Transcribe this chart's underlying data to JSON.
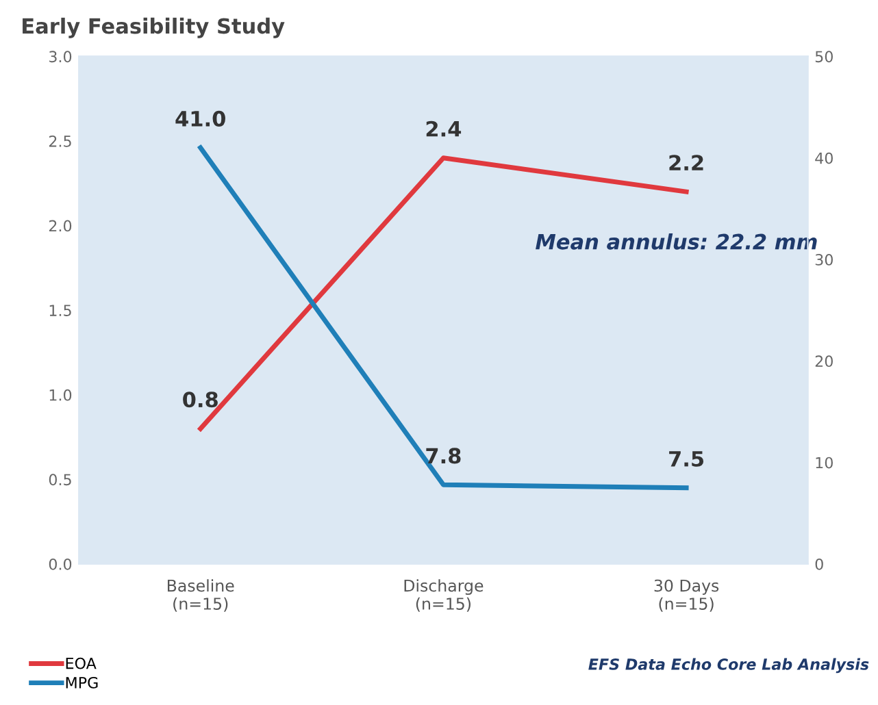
{
  "chart_data": {
    "type": "line",
    "title": "Early Feasibility Study",
    "categories": [
      "Baseline\n(n=15)",
      "Discharge\n(n=15)",
      "30 Days\n(n=15)"
    ],
    "series": [
      {
        "name": "EOA",
        "color": "#e0393e",
        "values": [
          0.8,
          2.4,
          2.2
        ],
        "value_labels": [
          "0.8",
          "2.4",
          "2.2"
        ]
      },
      {
        "name": "MPG",
        "color": "#1f7fb8",
        "values": [
          41.0,
          7.8,
          7.5
        ],
        "value_labels": [
          "41.0",
          "7.8",
          "7.5"
        ],
        "axis": "y2"
      }
    ],
    "ylim": [
      0,
      3
    ],
    "yticks": [
      {
        "value": 0,
        "label": "0.0"
      },
      {
        "value": 0.5,
        "label": "0.5"
      },
      {
        "value": 1,
        "label": "1.0"
      },
      {
        "value": 1.5,
        "label": "1.5"
      },
      {
        "value": 2,
        "label": "2.0"
      },
      {
        "value": 2.5,
        "label": "2.5"
      },
      {
        "value": 3,
        "label": "3.0"
      }
    ],
    "y2lim": [
      0,
      50
    ],
    "y2ticks": [
      0,
      10,
      20,
      30,
      40,
      50
    ],
    "annotations": [
      "Mean annulus: 22.2 mm",
      "EFS Data Echo Core Lab Analysis"
    ],
    "legend": "bottom left",
    "grid": false,
    "marker": "none",
    "line_style": "solid"
  }
}
